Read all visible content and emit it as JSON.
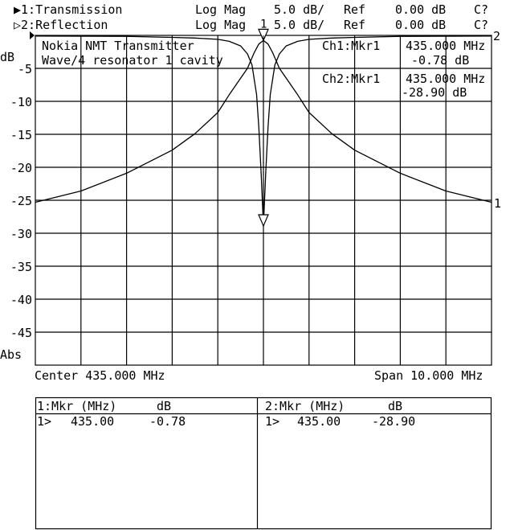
{
  "header": {
    "rows": [
      {
        "channel": "▶1:Transmission",
        "format": "Log Mag",
        "scale": "5.0 dB/",
        "ref_label": "Ref",
        "ref_value": "0.00 dB",
        "cal": "C?"
      },
      {
        "channel": "▷2:Reflection",
        "format": "Log Mag",
        "scale": "5.0 dB/",
        "ref_label": "Ref",
        "ref_value": "0.00 dB",
        "cal": "C?"
      }
    ]
  },
  "title_lines": [
    "Nokia NMT Transmitter",
    "Wave/4 resonator 1 cavity"
  ],
  "marker_readouts": [
    {
      "label": "Ch1:Mkr1",
      "freq": "435.000 MHz",
      "value": "-0.78 dB"
    },
    {
      "label": "Ch2:Mkr1",
      "freq": "435.000 MHz",
      "value": "-28.90 dB"
    }
  ],
  "footer": {
    "center": "Center 435.000 MHz",
    "span": "Span 10.000 MHz"
  },
  "marker_table": [
    {
      "header_mkr": "1:Mkr (MHz)",
      "header_db": "dB",
      "rows": [
        {
          "id": "1>",
          "freq": "435.00",
          "value": "-0.78"
        }
      ]
    },
    {
      "header_mkr": "2:Mkr (MHz)",
      "header_db": "dB",
      "rows": [
        {
          "id": "1>",
          "freq": "435.00",
          "value": "-28.90"
        }
      ]
    }
  ],
  "chart_data": {
    "type": "line",
    "ylabel": "dB",
    "ylabel_bottom": "Abs",
    "xlim": [
      430.0,
      440.0
    ],
    "ylim": [
      -50,
      0
    ],
    "y_ticks": [
      -5,
      -10,
      -15,
      -20,
      -25,
      -30,
      -35,
      -40,
      -45
    ],
    "y_tick_labels": [
      "-5",
      "-10",
      "-15",
      "-20",
      "-25",
      "-30",
      "-35",
      "-40",
      "-45"
    ],
    "x_divisions": 10,
    "grid": true,
    "series": [
      {
        "name": "1",
        "trace_label": "1",
        "x": [
          430.0,
          431.0,
          432.0,
          433.0,
          433.5,
          434.0,
          434.25,
          434.5,
          434.65,
          434.8,
          434.9,
          435.0,
          435.1,
          435.2,
          435.35,
          435.5,
          435.75,
          436.0,
          436.5,
          437.0,
          438.0,
          439.0,
          440.0
        ],
        "y": [
          -25.3,
          -23.6,
          -20.9,
          -17.4,
          -14.9,
          -11.7,
          -9.0,
          -6.5,
          -5.0,
          -2.6,
          -1.3,
          -0.78,
          -1.3,
          -2.6,
          -5.0,
          -6.5,
          -9.0,
          -11.7,
          -14.9,
          -17.4,
          -20.9,
          -23.6,
          -25.3
        ]
      },
      {
        "name": "2",
        "trace_label": "2",
        "x": [
          430.0,
          432.0,
          433.0,
          433.5,
          434.0,
          434.25,
          434.5,
          434.65,
          434.75,
          434.85,
          434.9,
          434.95,
          435.0,
          435.05,
          435.1,
          435.15,
          435.25,
          435.35,
          435.5,
          435.75,
          436.0,
          436.5,
          437.0,
          438.0,
          440.0
        ],
        "y": [
          -0.1,
          -0.15,
          -0.3,
          -0.4,
          -0.6,
          -0.9,
          -1.6,
          -2.8,
          -4.5,
          -9.0,
          -14.0,
          -21.0,
          -28.9,
          -21.0,
          -14.0,
          -9.0,
          -4.5,
          -2.8,
          -1.6,
          -0.9,
          -0.6,
          -0.4,
          -0.3,
          -0.15,
          -0.1
        ]
      }
    ],
    "markers": [
      {
        "series": "1",
        "label": "1",
        "x": 435.0,
        "y": -0.78
      },
      {
        "series": "2",
        "label": "1",
        "x": 435.0,
        "y": -28.9
      }
    ]
  }
}
